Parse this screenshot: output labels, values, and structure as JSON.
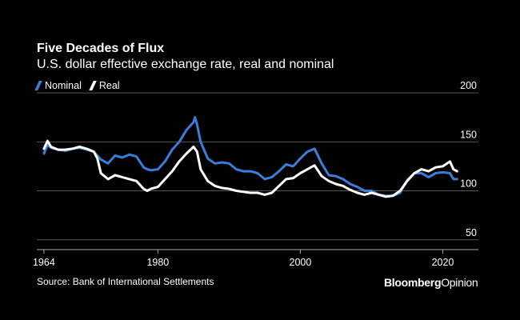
{
  "header": {
    "title": "Five Decades of Flux",
    "subtitle": "U.S. dollar effective exchange rate, real and nominal"
  },
  "footer": {
    "source": "Source: Bank of International Settlements",
    "brand_bold": "Bloomberg",
    "brand_regular": "Opinion"
  },
  "colors": {
    "background": "#000000",
    "nominal": "#3b7dd8",
    "real": "#ffffff",
    "grid": "#555555"
  },
  "chart_data": {
    "type": "line",
    "title": "Five Decades of Flux",
    "subtitle": "U.S. dollar effective exchange rate, real and nominal",
    "xlabel": "",
    "ylabel": "",
    "xlim": [
      1963,
      2025
    ],
    "ylim": [
      40,
      205
    ],
    "x_ticks": [
      "1964",
      "1980",
      "2000",
      "2020"
    ],
    "x_tick_values": [
      1964,
      1980,
      2000,
      2020
    ],
    "y_ticks": [
      "200",
      "150",
      "100",
      "50"
    ],
    "y_tick_values": [
      200,
      150,
      100,
      50
    ],
    "grid": true,
    "legend_position": "top-left",
    "series": [
      {
        "name": "Nominal",
        "color": "#3b7dd8",
        "x": [
          1964,
          1964.5,
          1965,
          1966,
          1967,
          1968,
          1969,
          1970,
          1971,
          1971.5,
          1972,
          1973,
          1974,
          1975,
          1976,
          1977,
          1978,
          1978.5,
          1979,
          1980,
          1981,
          1982,
          1983,
          1984,
          1985,
          1985.2,
          1985.5,
          1986,
          1987,
          1988,
          1989,
          1990,
          1991,
          1992,
          1993,
          1994,
          1995,
          1996,
          1997,
          1998,
          1999,
          2000,
          2001,
          2002,
          2003,
          2004,
          2005,
          2006,
          2007,
          2008,
          2009,
          2010,
          2011,
          2012,
          2013,
          2014,
          2015,
          2016,
          2017,
          2018,
          2019,
          2020,
          2021,
          2021.5,
          2022
        ],
        "values": [
          138,
          147,
          144,
          142,
          141,
          143,
          144,
          142,
          140,
          136,
          132,
          128,
          136,
          134,
          137,
          135,
          124,
          122,
          121,
          122,
          130,
          142,
          150,
          162,
          170,
          175,
          168,
          150,
          133,
          128,
          129,
          128,
          122,
          120,
          120,
          118,
          112,
          114,
          120,
          127,
          125,
          133,
          140,
          143,
          128,
          116,
          115,
          112,
          107,
          104,
          100,
          100,
          96,
          95,
          95,
          98,
          111,
          118,
          118,
          114,
          118,
          119,
          118,
          112,
          112
        ]
      },
      {
        "name": "Real",
        "color": "#ffffff",
        "x": [
          1964,
          1964.5,
          1965,
          1966,
          1967,
          1968,
          1969,
          1970,
          1971,
          1971.5,
          1972,
          1973,
          1974,
          1975,
          1976,
          1977,
          1978,
          1978.5,
          1979,
          1980,
          1981,
          1982,
          1983,
          1984,
          1985,
          1985.5,
          1986,
          1987,
          1988,
          1989,
          1990,
          1991,
          1992,
          1993,
          1994,
          1995,
          1996,
          1997,
          1998,
          1999,
          2000,
          2001,
          2002,
          2003,
          2004,
          2005,
          2006,
          2007,
          2008,
          2009,
          2010,
          2011,
          2012,
          2013,
          2014,
          2015,
          2016,
          2017,
          2018,
          2019,
          2020,
          2021,
          2021.5,
          2022
        ],
        "values": [
          143,
          151,
          145,
          142,
          142,
          143,
          145,
          143,
          140,
          133,
          118,
          112,
          116,
          114,
          112,
          110,
          102,
          100,
          102,
          104,
          112,
          120,
          130,
          138,
          145,
          140,
          122,
          110,
          105,
          103,
          102,
          100,
          99,
          98,
          98,
          96,
          98,
          105,
          112,
          113,
          118,
          122,
          126,
          115,
          110,
          107,
          105,
          101,
          98,
          96,
          98,
          96,
          94,
          95,
          100,
          110,
          118,
          122,
          120,
          124,
          125,
          130,
          122,
          120
        ]
      }
    ]
  }
}
